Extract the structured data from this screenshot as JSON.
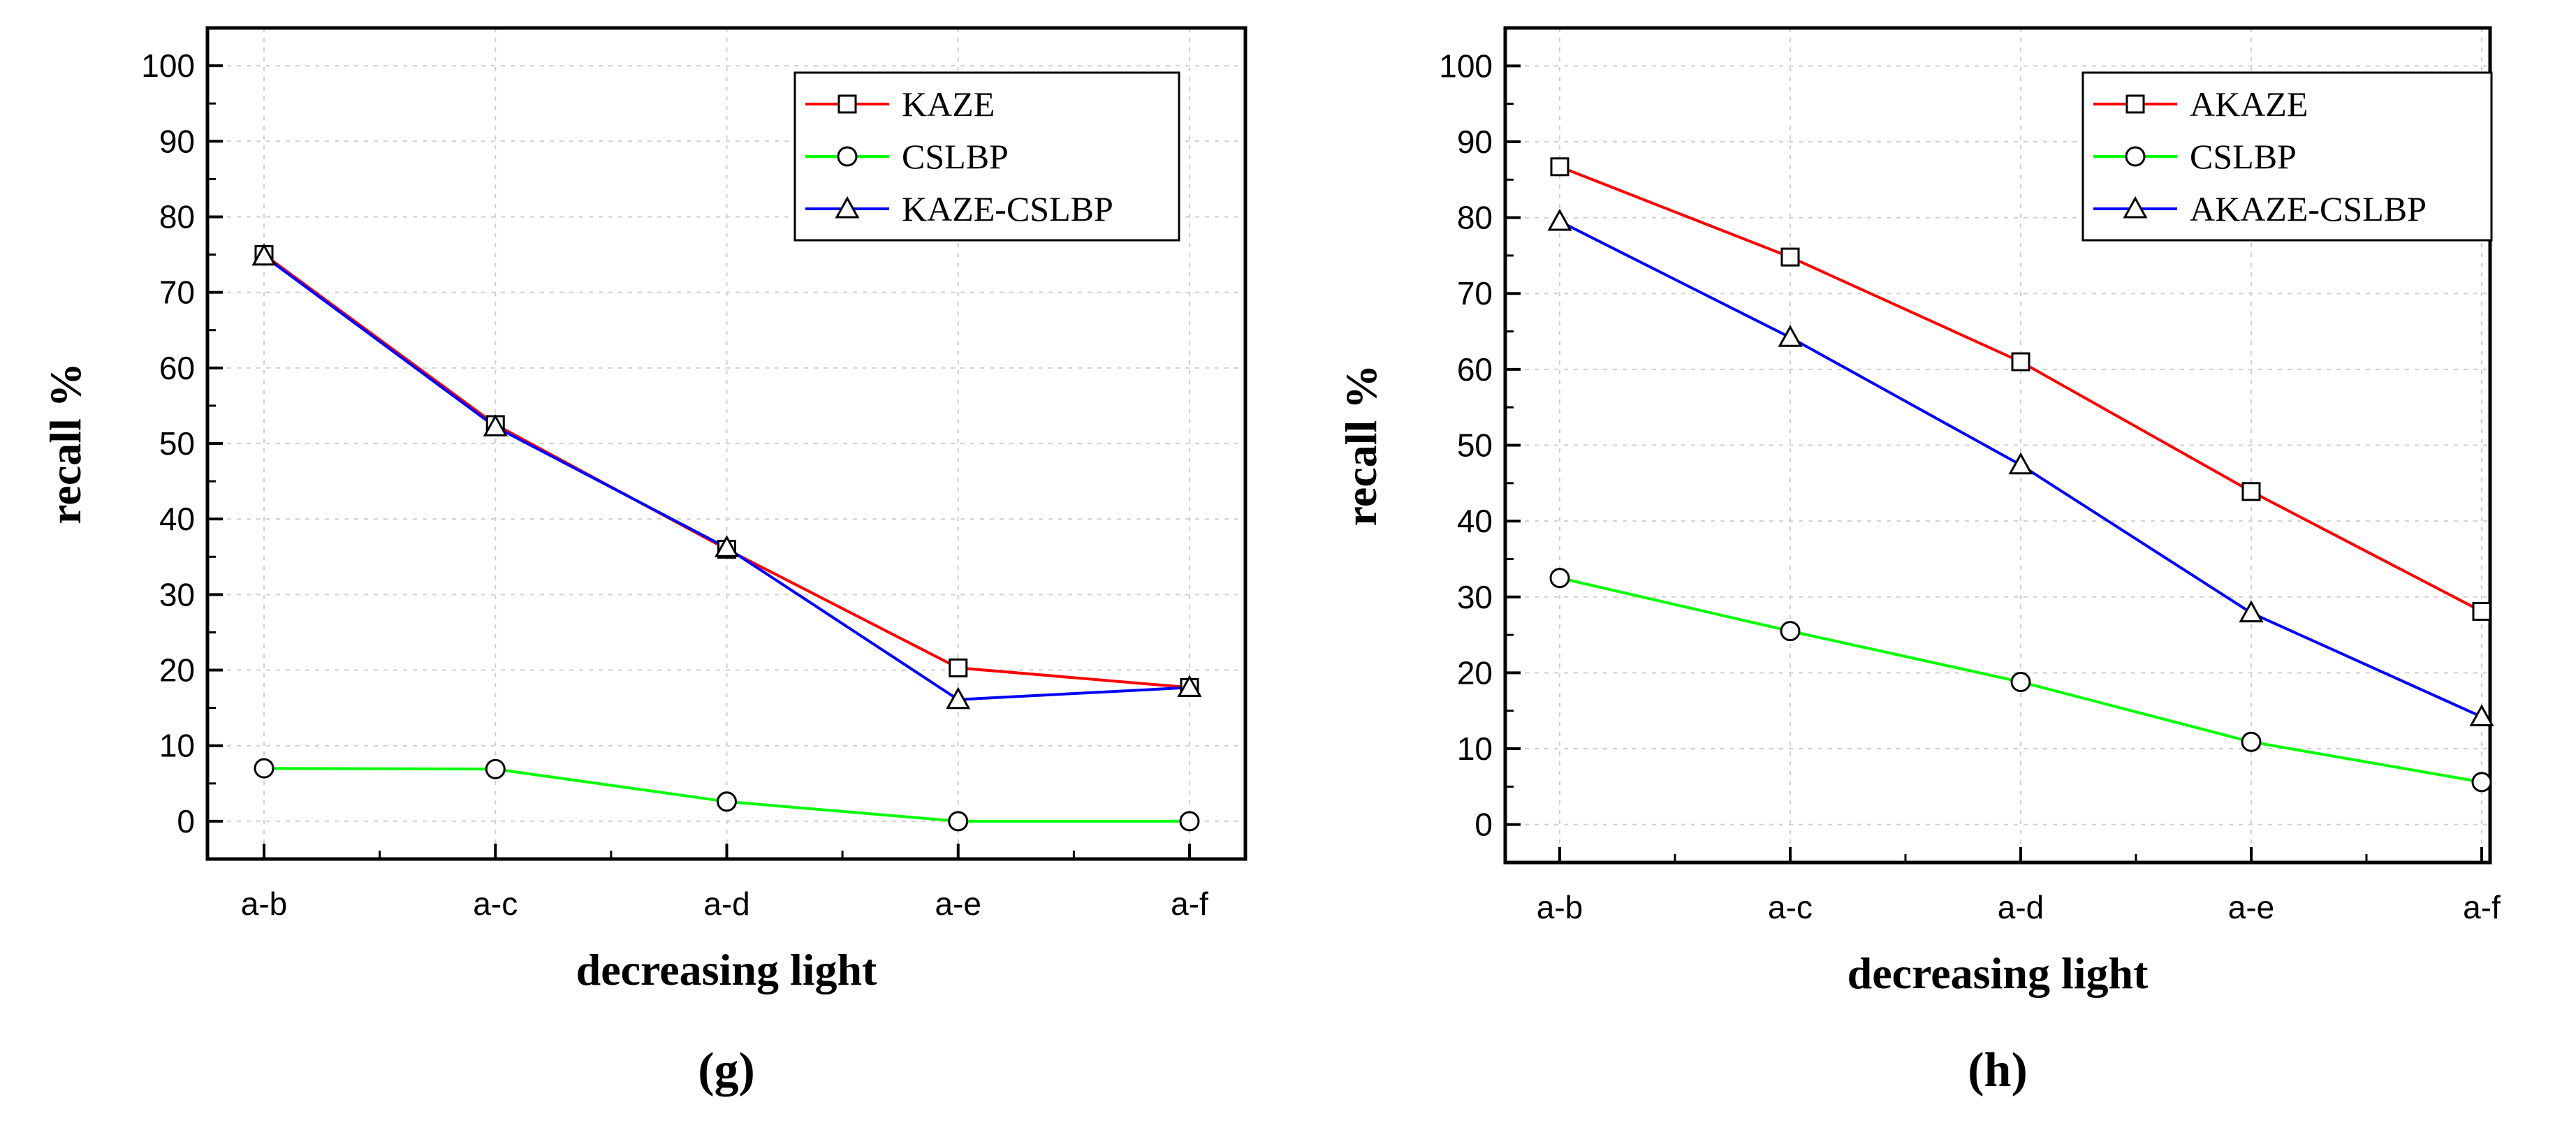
{
  "chart_data": [
    {
      "type": "line",
      "panel_label": "(g)",
      "xlabel": "decreasing light",
      "ylabel": "recall %",
      "categories": [
        "a-b",
        "a-c",
        "a-d",
        "a-e",
        "a-f"
      ],
      "ylim": [
        -5,
        105
      ],
      "yticks": [
        0,
        10,
        20,
        30,
        40,
        50,
        60,
        70,
        80,
        90,
        100
      ],
      "grid": true,
      "legend_position": "top-right",
      "series": [
        {
          "name": "KAZE",
          "color": "#ff0000",
          "marker": "square",
          "values": [
            75,
            52.5,
            36,
            20.3,
            17.7
          ]
        },
        {
          "name": "CSLBP",
          "color": "#00ff00",
          "marker": "circle",
          "values": [
            7,
            6.9,
            2.6,
            0,
            0
          ]
        },
        {
          "name": "KAZE-CSLBP",
          "color": "#0000ff",
          "marker": "triangle",
          "values": [
            74.8,
            52.2,
            36.2,
            16.1,
            17.7
          ]
        }
      ]
    },
    {
      "type": "line",
      "panel_label": "(h)",
      "xlabel": "decreasing light",
      "ylabel": "recall %",
      "categories": [
        "a-b",
        "a-c",
        "a-d",
        "a-e",
        "a-f"
      ],
      "ylim": [
        -5,
        105
      ],
      "yticks": [
        0,
        10,
        20,
        30,
        40,
        50,
        60,
        70,
        80,
        90,
        100
      ],
      "grid": true,
      "legend_position": "top-right",
      "series": [
        {
          "name": "AKAZE",
          "color": "#ff0000",
          "marker": "square",
          "values": [
            86.7,
            74.8,
            61,
            43.9,
            28.1
          ]
        },
        {
          "name": "CSLBP",
          "color": "#00ff00",
          "marker": "circle",
          "values": [
            32.5,
            25.5,
            18.8,
            10.9,
            5.6
          ]
        },
        {
          "name": "AKAZE-CSLBP",
          "color": "#0000ff",
          "marker": "triangle",
          "values": [
            79.5,
            64.2,
            47.4,
            27.9,
            14.2
          ]
        }
      ]
    }
  ]
}
